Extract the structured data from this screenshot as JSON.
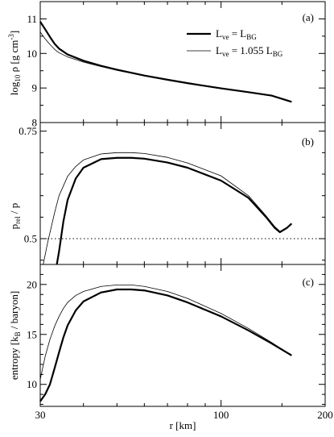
{
  "chart_data": [
    {
      "panel": "(a)",
      "type": "line",
      "ylabel": {
        "pre": "log",
        "pre_sub": "10",
        "main": " ρ [g cm",
        "sup": "-3",
        "post": "]"
      },
      "xlim": [
        30,
        200
      ],
      "xscale": "log",
      "ylim": [
        8,
        11.5
      ],
      "yticks": [
        8,
        9,
        10,
        11
      ],
      "ytick_labels": [
        "8",
        "9",
        "10",
        "11"
      ],
      "legend": {
        "placement": "top-right",
        "entries": [
          {
            "pre": "L",
            "sub": "ve",
            "mid": " = L",
            "sub2": "BG",
            "post": "",
            "style": "thick"
          },
          {
            "pre": "L",
            "sub": "ve",
            "mid": " = 1.055 L",
            "sub2": "BG",
            "post": "",
            "style": "thin"
          }
        ]
      },
      "series": [
        {
          "style": "thick",
          "x": [
            30,
            31,
            32,
            33,
            34,
            36,
            40,
            45,
            50,
            60,
            70,
            80,
            90,
            100,
            120,
            140,
            160
          ],
          "y": [
            10.92,
            10.7,
            10.48,
            10.28,
            10.14,
            9.97,
            9.79,
            9.64,
            9.53,
            9.36,
            9.24,
            9.14,
            9.06,
            8.99,
            8.88,
            8.78,
            8.6
          ]
        },
        {
          "style": "thin",
          "x": [
            30,
            31,
            32,
            33,
            34,
            36,
            40,
            45,
            50,
            60,
            70,
            80,
            90,
            100,
            120,
            140,
            160
          ],
          "y": [
            10.62,
            10.42,
            10.26,
            10.12,
            10.02,
            9.9,
            9.75,
            9.62,
            9.51,
            9.35,
            9.23,
            9.13,
            9.05,
            8.98,
            8.87,
            8.77,
            8.6
          ]
        }
      ]
    },
    {
      "panel": "(b)",
      "type": "line",
      "ylabel": {
        "pre": "p",
        "pre_sub": "rel",
        "main": " / p",
        "sup": "",
        "post": ""
      },
      "xlim": [
        30,
        200
      ],
      "xscale": "log",
      "ylim": [
        0.44,
        0.77
      ],
      "yticks": [
        0.5,
        0.75
      ],
      "ytick_labels": [
        "0.5",
        "0.75"
      ],
      "reference_line": {
        "y": 0.5,
        "style": "dotted"
      },
      "series": [
        {
          "style": "thick",
          "x": [
            33.5,
            34,
            35,
            36,
            38,
            40,
            45,
            50,
            55,
            60,
            70,
            80,
            100,
            120,
            135,
            143,
            148,
            155,
            160
          ],
          "y": [
            0.44,
            0.47,
            0.54,
            0.59,
            0.64,
            0.665,
            0.685,
            0.688,
            0.688,
            0.686,
            0.677,
            0.665,
            0.635,
            0.595,
            0.55,
            0.525,
            0.515,
            0.525,
            0.535
          ]
        },
        {
          "style": "thin",
          "x": [
            30.6,
            31.5,
            33,
            34,
            36,
            38,
            40,
            45,
            50,
            55,
            60,
            70,
            80,
            100,
            120,
            135,
            143,
            148,
            155,
            160
          ],
          "y": [
            0.44,
            0.49,
            0.56,
            0.6,
            0.645,
            0.668,
            0.683,
            0.697,
            0.7,
            0.7,
            0.698,
            0.689,
            0.676,
            0.646,
            0.6,
            0.553,
            0.528,
            0.517,
            0.526,
            0.535
          ]
        }
      ]
    },
    {
      "panel": "(c)",
      "type": "line",
      "ylabel": {
        "pre": "entropy [k",
        "pre_sub": "B",
        "main": " / baryon]",
        "sup": "",
        "post": ""
      },
      "xlabel": "r  [km]",
      "xlim": [
        30,
        200
      ],
      "xscale": "log",
      "xticks": [
        30,
        100,
        200
      ],
      "xtick_labels": [
        "30",
        "100",
        "200"
      ],
      "ylim": [
        7.8,
        22
      ],
      "yticks": [
        10,
        15,
        20
      ],
      "ytick_labels": [
        "10",
        "15",
        "20"
      ],
      "series": [
        {
          "style": "thick",
          "x": [
            30,
            31,
            32,
            33,
            34,
            35,
            36,
            38,
            40,
            45,
            50,
            55,
            60,
            70,
            80,
            100,
            120,
            140,
            160
          ],
          "y": [
            8.3,
            9.0,
            10.0,
            11.6,
            13.2,
            14.7,
            15.9,
            17.4,
            18.3,
            19.2,
            19.5,
            19.5,
            19.4,
            18.9,
            18.2,
            16.8,
            15.4,
            14.1,
            12.9
          ]
        },
        {
          "style": "thin",
          "x": [
            30,
            31,
            32,
            33,
            34,
            35,
            36,
            38,
            40,
            45,
            50,
            55,
            60,
            70,
            80,
            100,
            120,
            140,
            160
          ],
          "y": [
            10.5,
            12.8,
            14.5,
            15.8,
            16.8,
            17.6,
            18.2,
            18.9,
            19.3,
            19.8,
            19.95,
            19.95,
            19.8,
            19.3,
            18.6,
            17.1,
            15.6,
            14.2,
            12.9
          ]
        }
      ]
    }
  ]
}
